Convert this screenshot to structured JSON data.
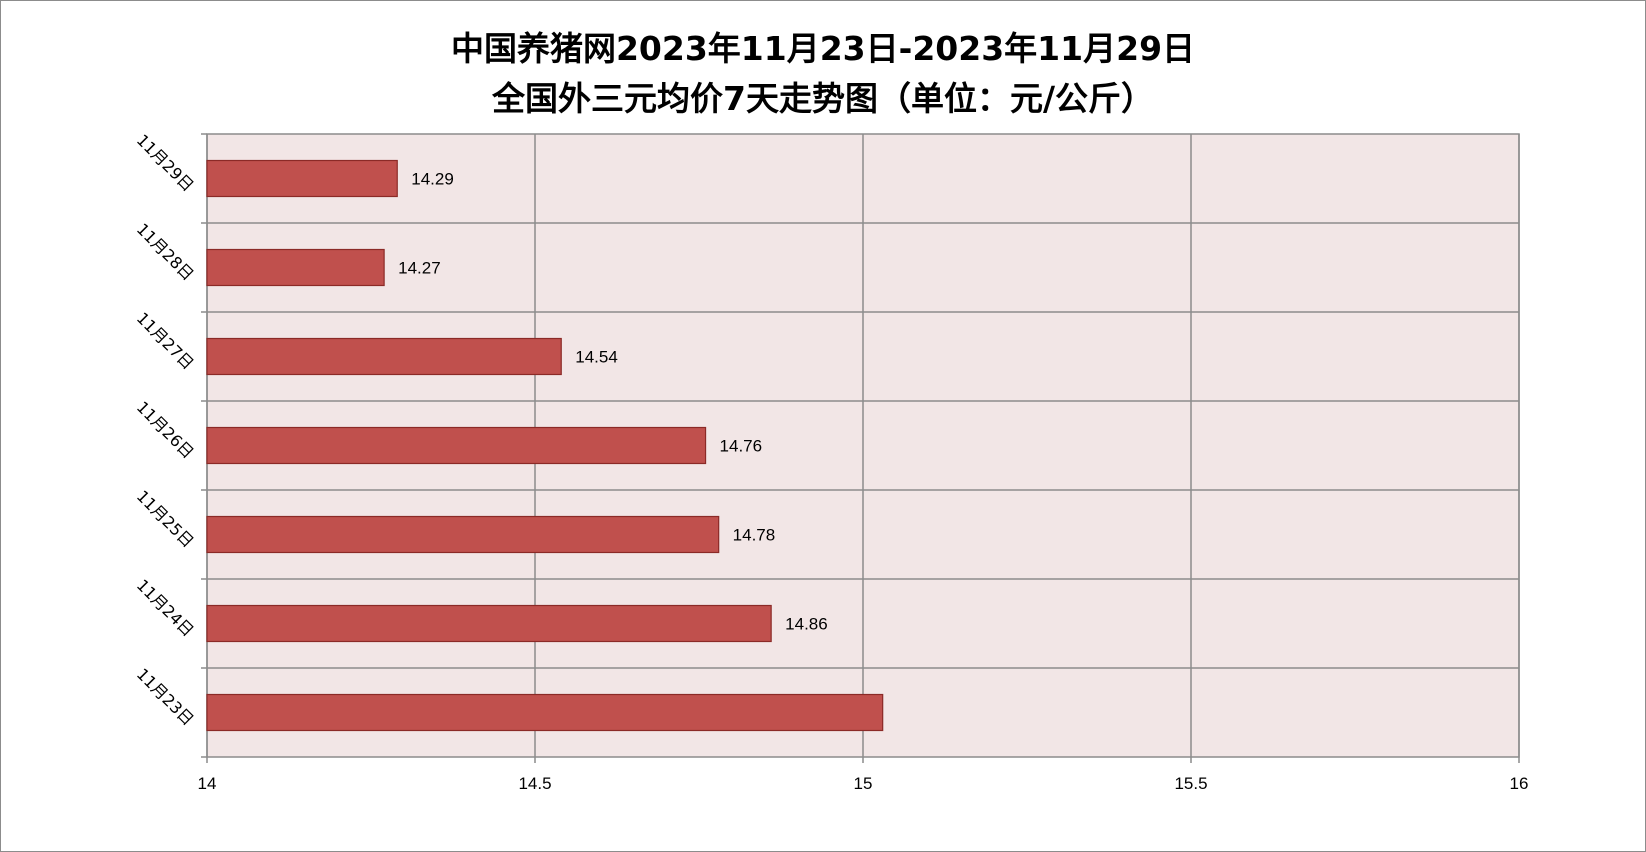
{
  "chart_data": {
    "type": "bar",
    "orientation": "horizontal",
    "title_line1": "中国养猪网2023年11月23日-2023年11月29日",
    "title_line2": "全国外三元均价7天走势图（单位：元/公斤）",
    "categories": [
      "11月23日",
      "11月24日",
      "11月25日",
      "11月26日",
      "11月27日",
      "11月28日",
      "11月29日"
    ],
    "values": [
      15.03,
      14.86,
      14.78,
      14.76,
      14.54,
      14.27,
      14.29
    ],
    "data_labels": [
      "",
      "14.86",
      "14.78",
      "14.76",
      "14.54",
      "14.27",
      "14.29"
    ],
    "xlim": [
      14,
      16
    ],
    "xticks": [
      "14",
      "14.5",
      "15",
      "15.5",
      "16"
    ],
    "xtick_values": [
      14,
      14.5,
      15,
      15.5,
      16
    ],
    "grid": true,
    "legend": "none",
    "colors": {
      "bar_fill": "#c0504d",
      "bar_stroke": "#8b2a27",
      "plot_bg": "#f2e6e6",
      "grid": "#8c8c8c"
    }
  }
}
